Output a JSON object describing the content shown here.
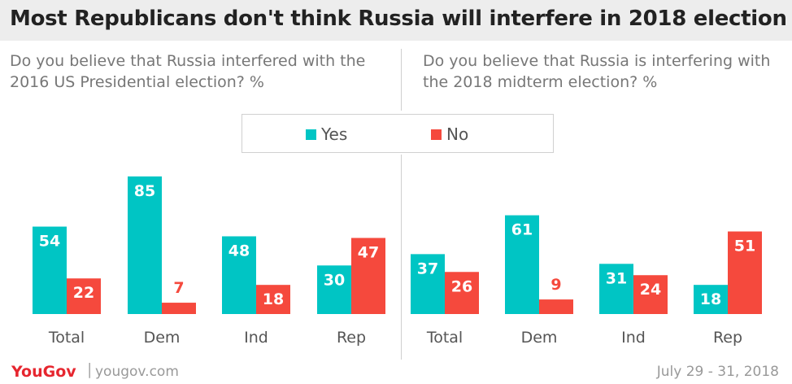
{
  "title": "Most Republicans don't think Russia will interfere in 2018 election",
  "legend": {
    "yes_label": "Yes",
    "no_label": "No",
    "yes_color": "#00c5c4",
    "no_color": "#f5493d"
  },
  "chart_data": [
    {
      "type": "bar",
      "subtitle": "Do you believe that Russia interfered with the 2016 US Presidential election? %",
      "categories": [
        "Total",
        "Dem",
        "Ind",
        "Rep"
      ],
      "series": [
        {
          "name": "Yes",
          "values": [
            54,
            85,
            48,
            30
          ]
        },
        {
          "name": "No",
          "values": [
            22,
            7,
            18,
            47
          ]
        }
      ],
      "ylim": [
        0,
        100
      ],
      "grid": false,
      "legend_position": "top-center"
    },
    {
      "type": "bar",
      "subtitle": "Do you believe that Russia is interfering with the 2018 midterm election? %",
      "categories": [
        "Total",
        "Dem",
        "Ind",
        "Rep"
      ],
      "series": [
        {
          "name": "Yes",
          "values": [
            37,
            61,
            31,
            18
          ]
        },
        {
          "name": "No",
          "values": [
            26,
            9,
            24,
            51
          ]
        }
      ],
      "ylim": [
        0,
        100
      ],
      "grid": false,
      "legend_position": "top-center"
    }
  ],
  "footer": {
    "brand": "YouGov",
    "separator": "|",
    "site": "yougov.com",
    "date": "July 29 - 31, 2018"
  }
}
